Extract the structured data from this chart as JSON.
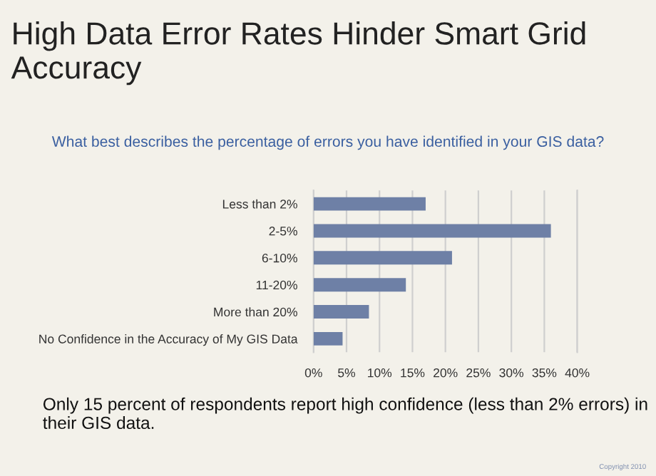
{
  "chart_data": {
    "type": "bar",
    "orientation": "horizontal",
    "title": "High Data Error Rates Hinder Smart Grid Accuracy",
    "subtitle": "What best describes the percentage of errors you have identified in your GIS data?",
    "categories": [
      "Less than 2%",
      "2-5%",
      "6-10%",
      "11-20%",
      "More than 20%",
      "No Confidence in the Accuracy of My GIS Data"
    ],
    "values": [
      17.0,
      36.0,
      21.0,
      14.0,
      8.4,
      4.4
    ],
    "color": "#6e80a6",
    "xlim": [
      0,
      40
    ],
    "xticks": [
      {
        "value": 0,
        "label": "0%"
      },
      {
        "value": 5,
        "label": "5%"
      },
      {
        "value": 10,
        "label": "10%"
      },
      {
        "value": 15,
        "label": "15%"
      },
      {
        "value": 20,
        "label": "20%"
      },
      {
        "value": 25,
        "label": "25%"
      },
      {
        "value": 30,
        "label": "30%"
      },
      {
        "value": 35,
        "label": "35%"
      },
      {
        "value": 40,
        "label": "40%"
      }
    ],
    "grid": "x",
    "annotations": [
      "Only 15 percent of respondents report high confidence (less than 2% errors) in their GIS data.",
      "Copyright 2010"
    ]
  }
}
